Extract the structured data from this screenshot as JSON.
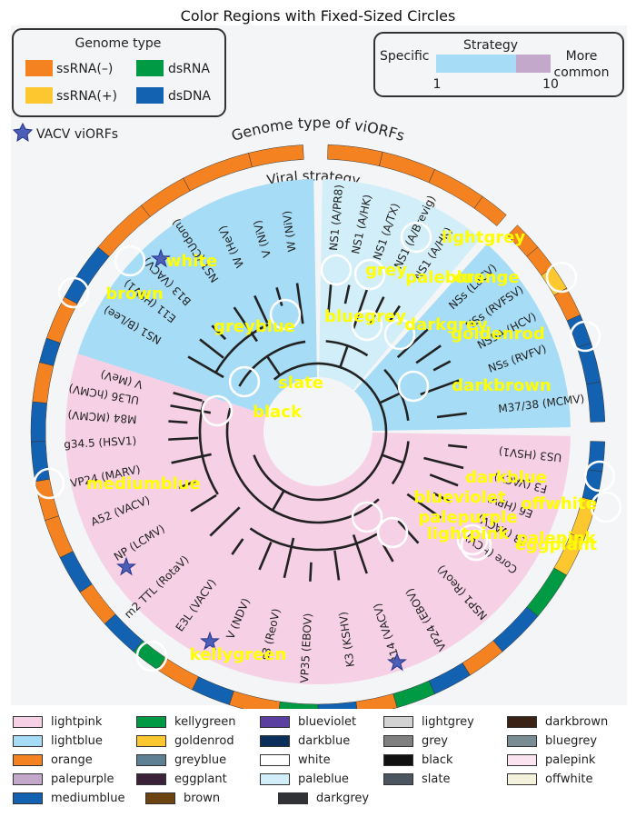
{
  "title": "Color Regions with Fixed-Sized Circles",
  "chart_data": {
    "type": "annotated-image",
    "genome_legend": {
      "title": "Genome type",
      "items": [
        {
          "label": "ssRNA(–)",
          "color": "#f58220"
        },
        {
          "label": "dsRNA",
          "color": "#009a44"
        },
        {
          "label": "ssRNA(+)",
          "color": "#fdc82f"
        },
        {
          "label": "dsDNA",
          "color": "#1361b1"
        }
      ]
    },
    "strategy_legend": {
      "title": "Strategy",
      "left": "Specific",
      "right_line1": "More",
      "right_line2": "common",
      "min": "1",
      "max": "10",
      "colors": [
        "#a6dcf5",
        "#c4a8cc"
      ]
    },
    "vacv_label": "VACV viORFs",
    "ring_title": "Genome type of viORFs",
    "inner_title": "Viral strategy",
    "leaves": [
      "NS1 (B/Lee)",
      "E11 (HSV1)",
      "B13 (VACV)",
      "NS1 (CUdom)",
      "W (HeV)",
      "V (NiV)",
      "W (NiV)",
      "NS1 (A/PR8)",
      "NS1 (A/HK)",
      "NS1 (A/TX)",
      "NS1 (A/Brevig)",
      "NS1 (A/HK)",
      "NSs (LaCV)",
      "NSs (RVFSV)",
      "NS5A (HCV)",
      "NSs (RVFV)",
      "M37/38 (MCMV)",
      "US3 (HSV1)",
      "F3 (VACV)",
      "E6 (HPV)",
      "E3 (VACV)",
      "Core (HCV)",
      "NSP1 (ReoV)",
      "VP24 (EBOV)",
      "B14 (VACV)",
      "K3 (KSHV)",
      "VP35 (EBOV)",
      "s3 (ReoV)",
      "V (NDV)",
      "E3L (VACV)",
      "m2 TTL (RotaV)",
      "NP (LCMV)",
      "A52 (VACV)",
      "VP24 (MARV)",
      "g34.5 (HSV1)",
      "M84 (MCMV)",
      "UL36 (hCMV)",
      "V (MeV)"
    ],
    "annotations": [
      {
        "label": "lightgrey"
      },
      {
        "label": "white"
      },
      {
        "label": "grey"
      },
      {
        "label": "paleblue"
      },
      {
        "label": "orange"
      },
      {
        "label": "brown"
      },
      {
        "label": "bluegrey"
      },
      {
        "label": "greyblue"
      },
      {
        "label": "darkgrey"
      },
      {
        "label": "goldenrod"
      },
      {
        "label": "slate"
      },
      {
        "label": "darkbrown"
      },
      {
        "label": "black"
      },
      {
        "label": "darkblue"
      },
      {
        "label": "mediumblue"
      },
      {
        "label": "blueviolet"
      },
      {
        "label": "offwhite"
      },
      {
        "label": "palepurple"
      },
      {
        "label": "lightpink"
      },
      {
        "label": "palepink"
      },
      {
        "label": "eggplant"
      },
      {
        "label": "kellygreen"
      }
    ],
    "color_legend": [
      {
        "label": "lightpink",
        "color": "#f6d0e4"
      },
      {
        "label": "kellygreen",
        "color": "#009a44"
      },
      {
        "label": "blueviolet",
        "color": "#5a3ea0"
      },
      {
        "label": "lightgrey",
        "color": "#d3d3d3"
      },
      {
        "label": "darkbrown",
        "color": "#3a2316"
      },
      {
        "label": "lightblue",
        "color": "#a6dcf5"
      },
      {
        "label": "goldenrod",
        "color": "#fdc82f"
      },
      {
        "label": "darkblue",
        "color": "#0b2f5a"
      },
      {
        "label": "grey",
        "color": "#808080"
      },
      {
        "label": "bluegrey",
        "color": "#7b8d94"
      },
      {
        "label": "orange",
        "color": "#f58220"
      },
      {
        "label": "greyblue",
        "color": "#5f7f92"
      },
      {
        "label": "white",
        "color": "#ffffff"
      },
      {
        "label": "black",
        "color": "#111111"
      },
      {
        "label": "palepink",
        "color": "#fbe3ef"
      },
      {
        "label": "palepurple",
        "color": "#c4a8cc"
      },
      {
        "label": "eggplant",
        "color": "#3a2238"
      },
      {
        "label": "paleblue",
        "color": "#d2eef8"
      },
      {
        "label": "slate",
        "color": "#4a5560"
      },
      {
        "label": "offwhite",
        "color": "#f4f1dc"
      },
      {
        "label": "mediumblue",
        "color": "#1361b1"
      },
      {
        "label": "brown",
        "color": "#6b4412"
      },
      {
        "label": "darkgrey",
        "color": "#303236"
      }
    ]
  }
}
